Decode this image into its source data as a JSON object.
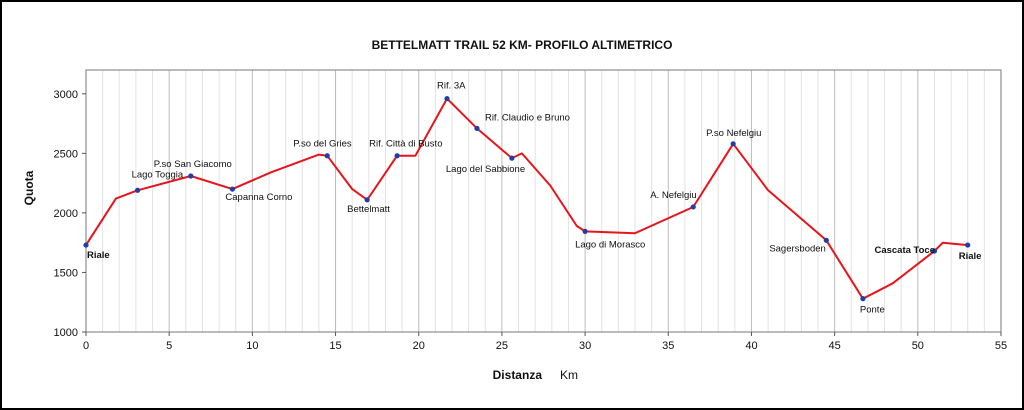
{
  "chart_data": {
    "type": "line",
    "title": "BETTELMATT TRAIL 52 KM- PROFILO ALTIMETRICO",
    "xlabel": "Distanza",
    "xunit": "Km",
    "ylabel": "Quota",
    "xlim": [
      0,
      55
    ],
    "ylim": [
      1000,
      3200
    ],
    "xticks": [
      "0",
      "5",
      "10",
      "15",
      "20",
      "25",
      "30",
      "35",
      "40",
      "45",
      "50",
      "55"
    ],
    "yticks": [
      "1000",
      "1500",
      "2000",
      "2500",
      "3000"
    ],
    "grid": "vertical",
    "line_color": "#e8141c",
    "marker_color": "#1f3fa8",
    "series": [
      {
        "values": [
          [
            0,
            1730
          ],
          [
            1.8,
            2120
          ],
          [
            3.1,
            2190
          ],
          [
            6.3,
            2310
          ],
          [
            8.8,
            2200
          ],
          [
            11.1,
            2340
          ],
          [
            14.0,
            2490
          ],
          [
            14.5,
            2480
          ],
          [
            16.0,
            2200
          ],
          [
            16.9,
            2110
          ],
          [
            18.7,
            2480
          ],
          [
            19.8,
            2480
          ],
          [
            21.7,
            2960
          ],
          [
            23.5,
            2710
          ],
          [
            25.0,
            2530
          ],
          [
            25.6,
            2460
          ],
          [
            26.2,
            2500
          ],
          [
            27.9,
            2230
          ],
          [
            29.5,
            1890
          ],
          [
            30.0,
            1845
          ],
          [
            33.0,
            1830
          ],
          [
            36.5,
            2050
          ],
          [
            38.9,
            2580
          ],
          [
            41.0,
            2190
          ],
          [
            44.5,
            1770
          ],
          [
            46.7,
            1280
          ],
          [
            48.5,
            1410
          ],
          [
            51.0,
            1680
          ],
          [
            51.5,
            1750
          ],
          [
            53.0,
            1730
          ]
        ]
      }
    ],
    "annotations": [
      {
        "text": "Riale",
        "x": 0,
        "y": 1730,
        "bold": true
      },
      {
        "text": "Lago Toggia",
        "x": 3.1,
        "y": 2190
      },
      {
        "text": "P.so San Giacomo",
        "x": 6.3,
        "y": 2310
      },
      {
        "text": "Capanna Corno",
        "x": 8.8,
        "y": 2200
      },
      {
        "text": "P.so del Gries",
        "x": 14.5,
        "y": 2480
      },
      {
        "text": "Bettelmatt",
        "x": 16.9,
        "y": 2110
      },
      {
        "text": "Rif. Città di Busto",
        "x": 18.7,
        "y": 2480
      },
      {
        "text": "Rif. 3A",
        "x": 21.7,
        "y": 2960
      },
      {
        "text": "Rif. Claudio e Bruno",
        "x": 23.5,
        "y": 2710
      },
      {
        "text": "Lago del Sabbione",
        "x": 25.6,
        "y": 2460
      },
      {
        "text": "Lago di Morasco",
        "x": 30.0,
        "y": 1845
      },
      {
        "text": "A. Nefelgiu",
        "x": 36.5,
        "y": 2050
      },
      {
        "text": "P.so Nefelgiu",
        "x": 38.9,
        "y": 2580
      },
      {
        "text": "Sagersboden",
        "x": 44.5,
        "y": 1770
      },
      {
        "text": "Ponte",
        "x": 46.7,
        "y": 1280
      },
      {
        "text": "Cascata Toce",
        "x": 51.0,
        "y": 1680,
        "bold": true
      },
      {
        "text": "Riale",
        "x": 53.0,
        "y": 1730,
        "bold": true
      }
    ]
  }
}
